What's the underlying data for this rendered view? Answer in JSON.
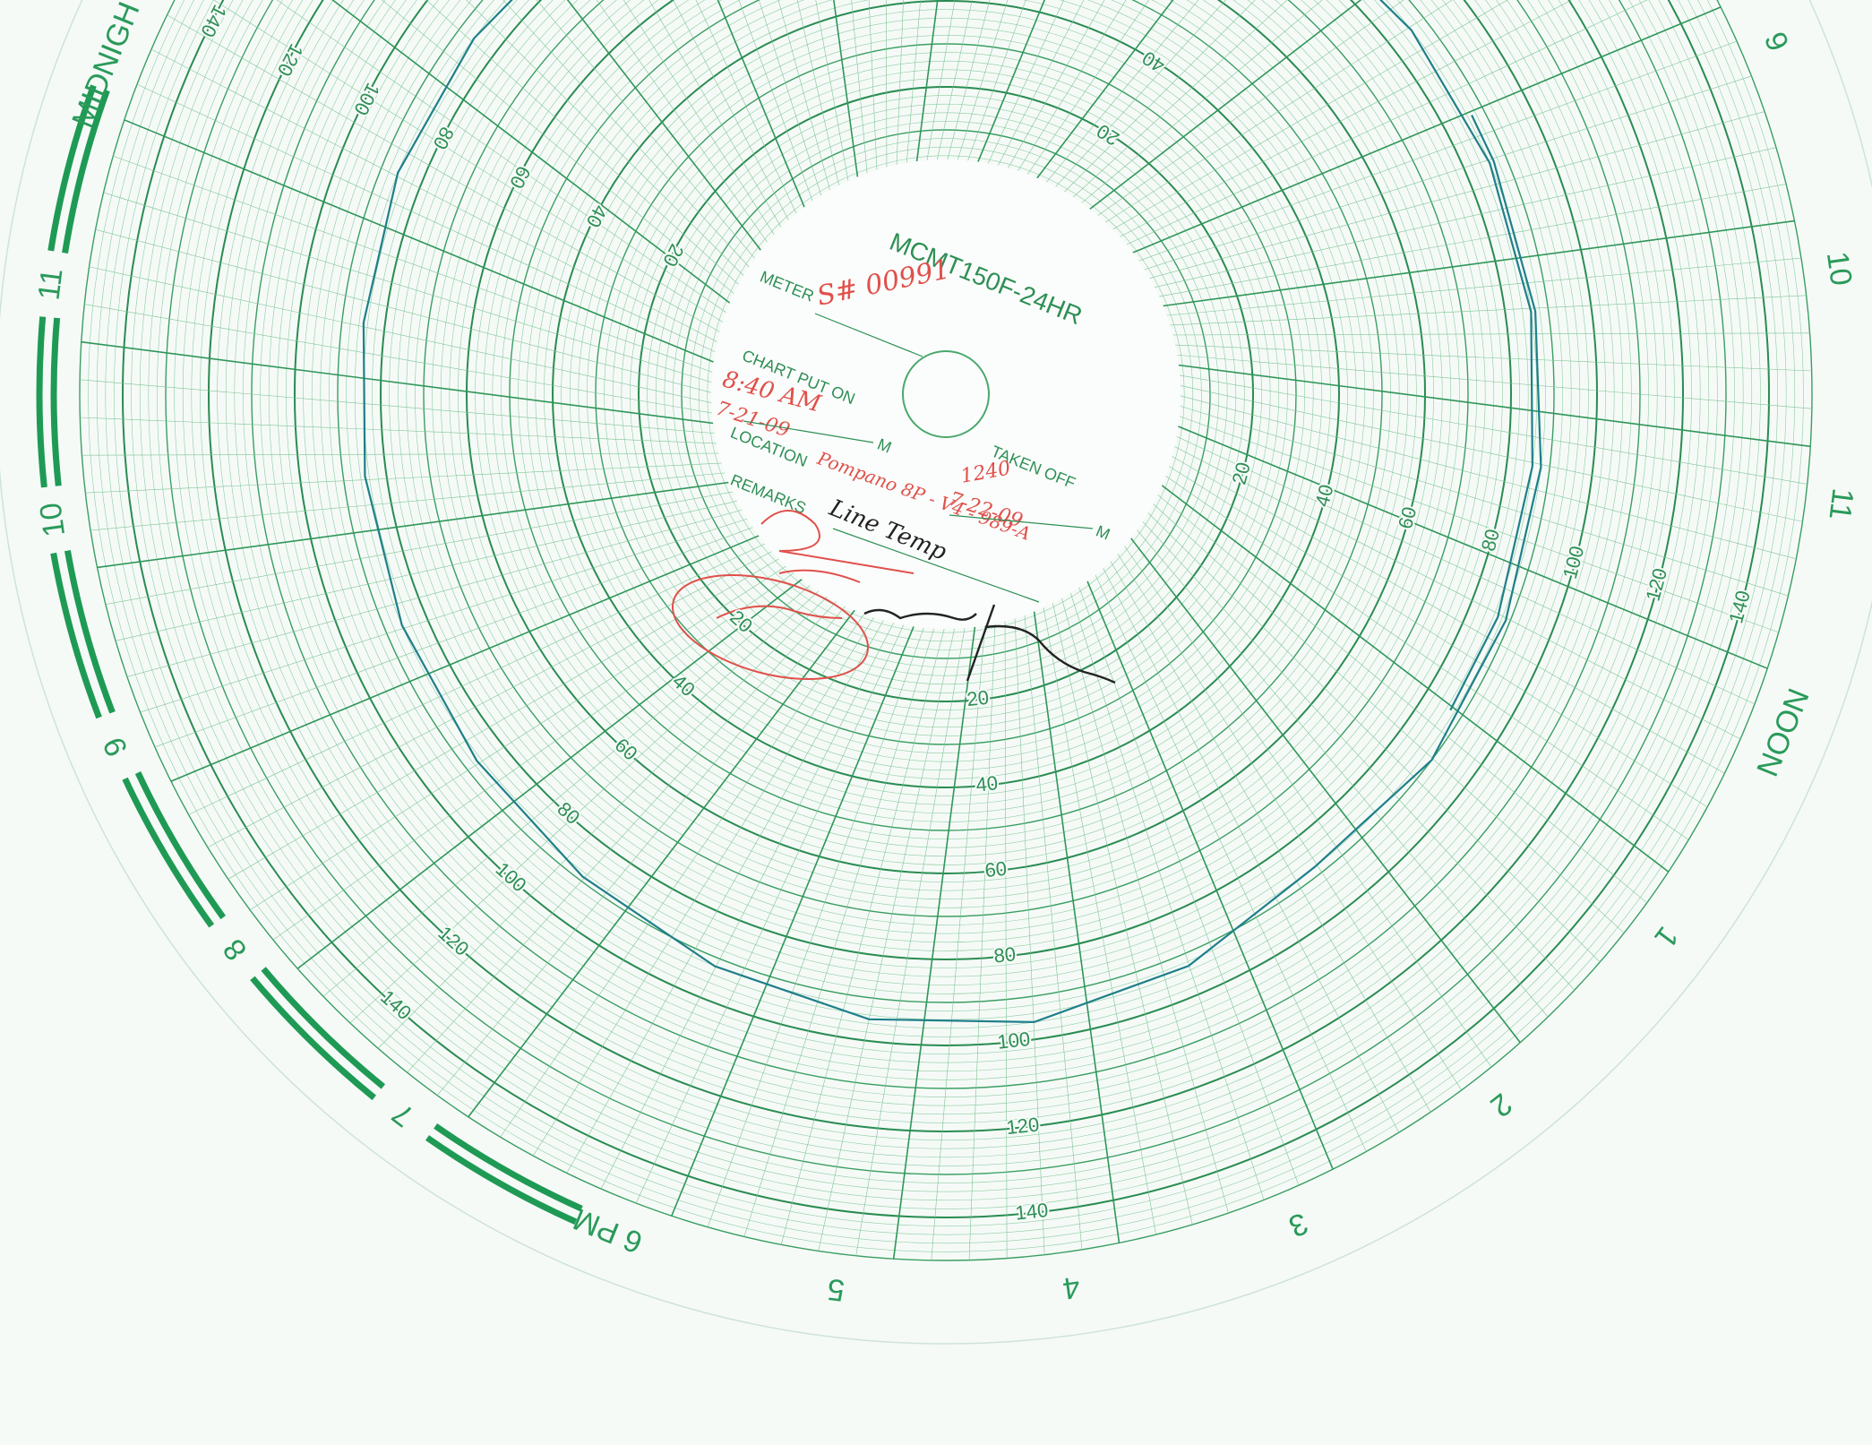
{
  "header": {
    "title": "MCMT150F-24HR"
  },
  "form": {
    "meter_label": "METER",
    "meter_value": "S# 00991",
    "chart_put_on_label": "CHART PUT ON",
    "put_on_time": "8:40 AM",
    "put_on_date": "7-21-09",
    "put_on_suffix": "M",
    "location_label": "LOCATION",
    "location_value": "Pompano 8P - V4 - 989-A",
    "remarks_label": "REMARKS",
    "remarks_value": "Line Temp",
    "taken_off_label": "TAKEN OFF",
    "taken_off_time": "1240",
    "taken_off_date": "7-22-09",
    "taken_off_suffix": "M"
  },
  "hour_labels": [
    "9",
    "10",
    "11",
    "NOON",
    "1",
    "2",
    "3",
    "4",
    "5",
    "6 PM",
    "7",
    "8",
    "9",
    "10",
    "11",
    "MIDNIGHT"
  ],
  "scale_lim": [
    0,
    150
  ],
  "ring_ticks": [
    20,
    40,
    60,
    80,
    100,
    120,
    140
  ],
  "trace": {
    "hours": [
      -3.33,
      -3,
      -2,
      -1,
      0,
      1,
      2,
      3,
      4,
      5,
      6,
      7,
      8,
      9,
      10,
      11,
      12,
      13,
      14,
      15,
      16,
      17,
      18,
      19,
      20,
      21,
      22,
      23,
      24,
      24.67
    ],
    "values": [
      87,
      87,
      87,
      88,
      89,
      90,
      88,
      93,
      96,
      95,
      92,
      89,
      87,
      86,
      85,
      85,
      86,
      86,
      86,
      86,
      86,
      86,
      86,
      86,
      86,
      86,
      86,
      86,
      87,
      87
    ]
  }
}
